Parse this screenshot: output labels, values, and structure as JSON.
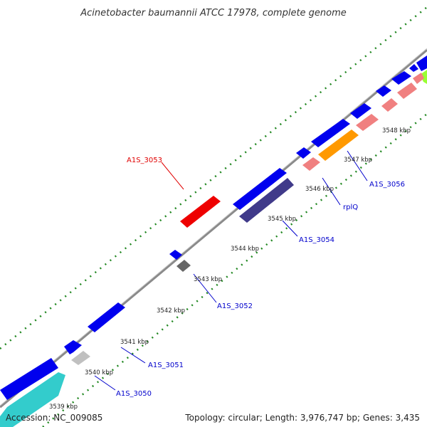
{
  "title": "Acinetobacter baumannii ATCC 17978, complete genome",
  "footer": {
    "accession": "Accession: NC_009085",
    "summary": "Topology: circular; Length: 3,976,747 bp; Genes: 3,435"
  },
  "ticks": [
    "3539 kbp",
    "3540 kbp",
    "3541 kbp",
    "3542 kbp",
    "3543 kbp",
    "3544 kbp",
    "3545 kbp",
    "3546 kbp",
    "3547 kbp",
    "3548 kbp"
  ],
  "gene_labels": [
    {
      "id": "gene-label-A1S_3053",
      "text": "A1S_3053",
      "color": "#e00000"
    },
    {
      "id": "gene-label-A1S_3054",
      "text": "A1S_3054",
      "color": "#0000cc"
    },
    {
      "id": "gene-label-rplQ",
      "text": "rplQ",
      "color": "#0000cc"
    },
    {
      "id": "gene-label-A1S_3056",
      "text": "A1S_3056",
      "color": "#0000cc"
    },
    {
      "id": "gene-label-A1S_3052",
      "text": "A1S_3052",
      "color": "#0000cc"
    },
    {
      "id": "gene-label-A1S_3051",
      "text": "A1S_3051",
      "color": "#0000cc"
    },
    {
      "id": "gene-label-A1S_3050",
      "text": "A1S_3050",
      "color": "#0000cc"
    }
  ],
  "colors": {
    "backbone": "#888888",
    "gene_blue": "#0000ee",
    "gene_navy": "#403a8a",
    "gene_red": "#ee0000",
    "gene_pink": "#f08080",
    "gene_orange": "#ff9900",
    "gene_grey": "#666666",
    "gene_lightgrey": "#c0c0c0",
    "gene_cyan": "#33cccc",
    "gene_green": "#99ff33",
    "tick_dots": "#228822"
  }
}
